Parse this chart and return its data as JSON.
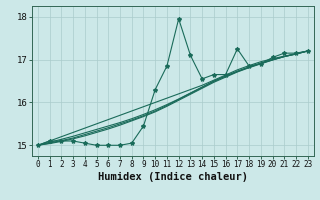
{
  "xlabel": "Humidex (Indice chaleur)",
  "bg_color": "#cce8e8",
  "grid_color": "#aacccc",
  "line_color": "#1a6b5a",
  "xlim": [
    -0.5,
    23.5
  ],
  "ylim": [
    14.75,
    18.25
  ],
  "x": [
    0,
    1,
    2,
    3,
    4,
    5,
    6,
    7,
    8,
    9,
    10,
    11,
    12,
    13,
    14,
    15,
    16,
    17,
    18,
    19,
    20,
    21,
    22,
    23
  ],
  "y_main": [
    15.0,
    15.1,
    15.1,
    15.1,
    15.05,
    15.0,
    15.0,
    15.0,
    15.05,
    15.45,
    16.3,
    16.85,
    17.95,
    17.1,
    16.55,
    16.65,
    16.65,
    17.25,
    16.85,
    16.9,
    17.05,
    17.15,
    17.15,
    17.2
  ],
  "y_line1": [
    15.0,
    15.07,
    15.14,
    15.21,
    15.29,
    15.37,
    15.45,
    15.53,
    15.62,
    15.72,
    15.83,
    15.95,
    16.08,
    16.22,
    16.36,
    16.5,
    16.62,
    16.73,
    16.83,
    16.92,
    17.0,
    17.07,
    17.13,
    17.2
  ],
  "y_line2": [
    15.0,
    15.05,
    15.11,
    15.17,
    15.25,
    15.33,
    15.41,
    15.5,
    15.59,
    15.69,
    15.8,
    15.93,
    16.07,
    16.21,
    16.35,
    16.49,
    16.61,
    16.72,
    16.82,
    16.91,
    16.99,
    17.07,
    17.13,
    17.2
  ],
  "y_line3": [
    15.0,
    15.04,
    15.09,
    15.15,
    15.22,
    15.3,
    15.38,
    15.47,
    15.57,
    15.67,
    15.78,
    15.91,
    16.05,
    16.19,
    16.33,
    16.47,
    16.59,
    16.71,
    16.81,
    16.9,
    16.99,
    17.07,
    17.13,
    17.2
  ],
  "y_line4": [
    15.0,
    15.1,
    15.2,
    15.3,
    15.4,
    15.5,
    15.6,
    15.7,
    15.8,
    15.9,
    16.0,
    16.1,
    16.2,
    16.3,
    16.4,
    16.52,
    16.64,
    16.76,
    16.86,
    16.95,
    17.02,
    17.08,
    17.14,
    17.2
  ],
  "xtick_fontsize": 5.5,
  "ytick_fontsize": 6.5,
  "xlabel_fontsize": 7.5
}
